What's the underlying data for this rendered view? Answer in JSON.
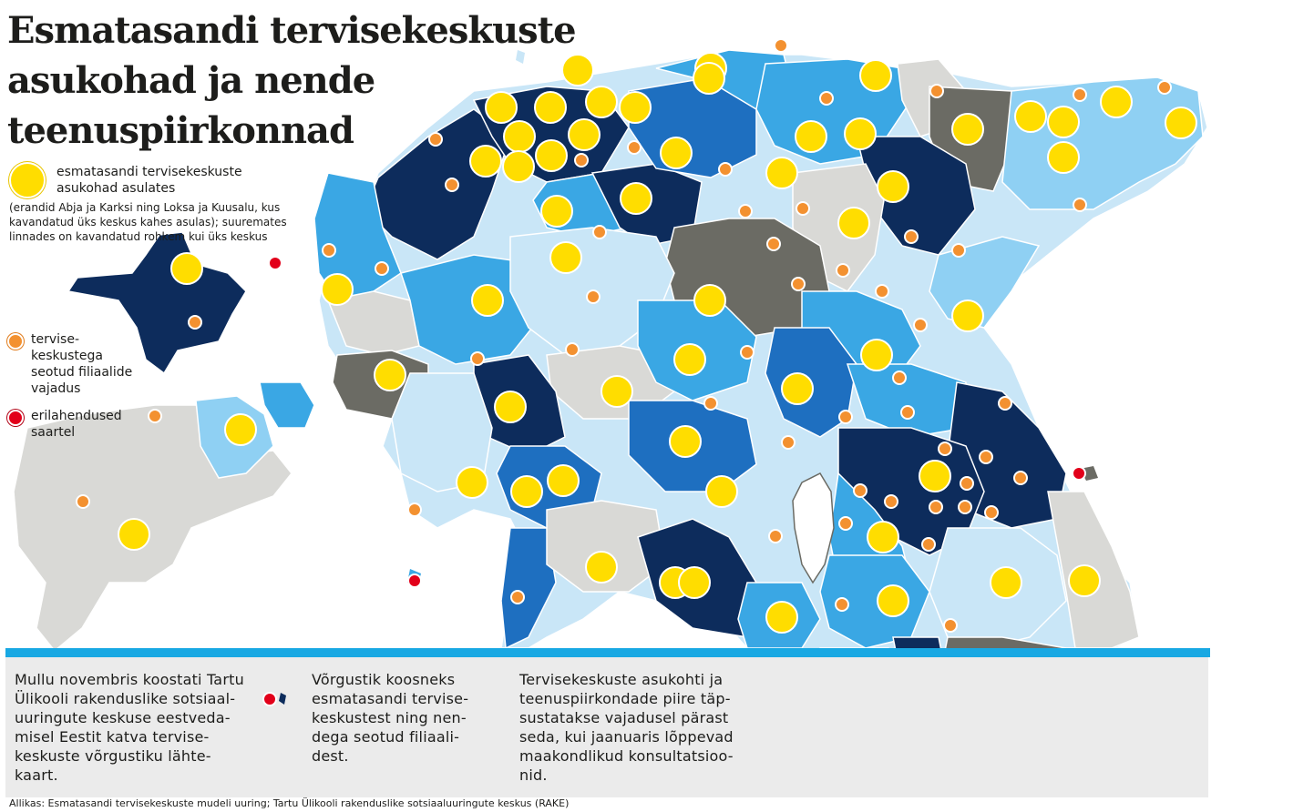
{
  "title": "Esmatasandi tervisekeskuste asukohad ja nende teenuspiirkonnad",
  "legend": {
    "yellow_label": "esmatasandi tervisekeskuste asukohad asulates",
    "note": "(erandid Abja ja Karksi ning Loksa ja Kuusalu, kus kavandatud üks keskus kahes asulas); suuremates linnades on kavandatud rohkem kui üks keskus",
    "orange_label": "tervise-keskustega seotud filiaalide vajadus",
    "red_label": "erilahendused saartel"
  },
  "columns": [
    "Mullu novembris koostati Tartu Ülikooli rakenduslike sotsiaal-uuringute keskuse eestveda-misel Eestit katva tervise-keskuste võrgustiku lähte-kaart.",
    "Võrgustik koosneks esmatasandi tervise-keskustest ning nen-dega seotud filiaali-dest.",
    "Tervisekeskuste asukohti ja teenuspiirkondade piire täp-sustatakse vajadusel pärast seda, kui jaanuaris lõppevad maakondlikud konsultatsioo-nid."
  ],
  "source": "Allikas: Esmatasandi tervisekeskuste mudeli uuring; Tartu Ülikooli rakenduslike sotsiaaluuringute keskus (RAKE)",
  "colors": {
    "navy": "#0d2c5c",
    "mid_blue": "#1e6fc0",
    "blue": "#3aa7e4",
    "sky": "#8fd0f3",
    "pale": "#c9e6f7",
    "gray_dark": "#6b6b64",
    "gray_light": "#d9d9d6",
    "yellow": "#ffdd00",
    "orange": "#f39130",
    "red": "#e2001a",
    "accent": "#18a8e3"
  }
}
